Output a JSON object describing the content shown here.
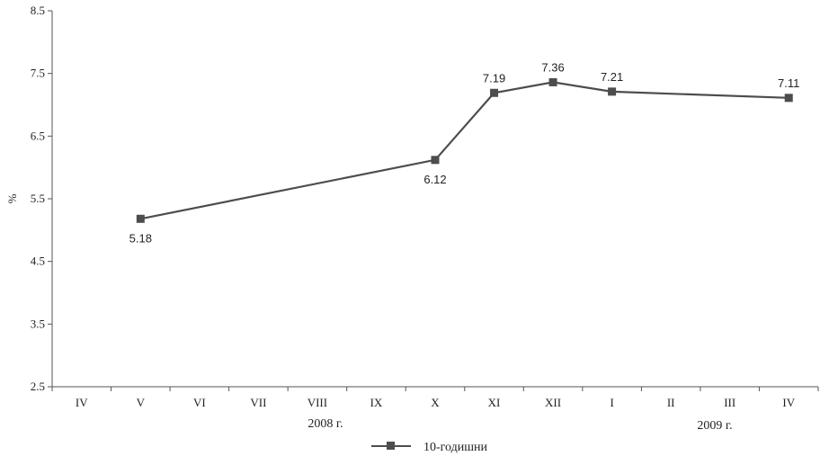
{
  "chart_data": {
    "type": "line",
    "ylabel": "%",
    "ylim": [
      2.5,
      8.5
    ],
    "yticks": [
      "2.5",
      "3.5",
      "4.5",
      "5.5",
      "6.5",
      "7.5",
      "8.5"
    ],
    "categories": [
      "IV",
      "V",
      "VI",
      "VII",
      "VIII",
      "IX",
      "X",
      "XI",
      "XII",
      "I",
      "II",
      "III",
      "IV"
    ],
    "year_labels": [
      "2008 г.",
      "2009 г."
    ],
    "grid": false,
    "legend_position": "bottom",
    "series": [
      {
        "name": "10-годишни",
        "color": "#4d4d4d",
        "marker": "square",
        "values": [
          null,
          5.18,
          null,
          null,
          null,
          null,
          6.12,
          7.19,
          7.36,
          7.21,
          null,
          null,
          7.11
        ],
        "labels": [
          "",
          "5.18",
          "",
          "",
          "",
          "",
          "6.12",
          "7.19",
          "7.36",
          "7.21",
          "",
          "",
          "7.11"
        ]
      }
    ]
  }
}
